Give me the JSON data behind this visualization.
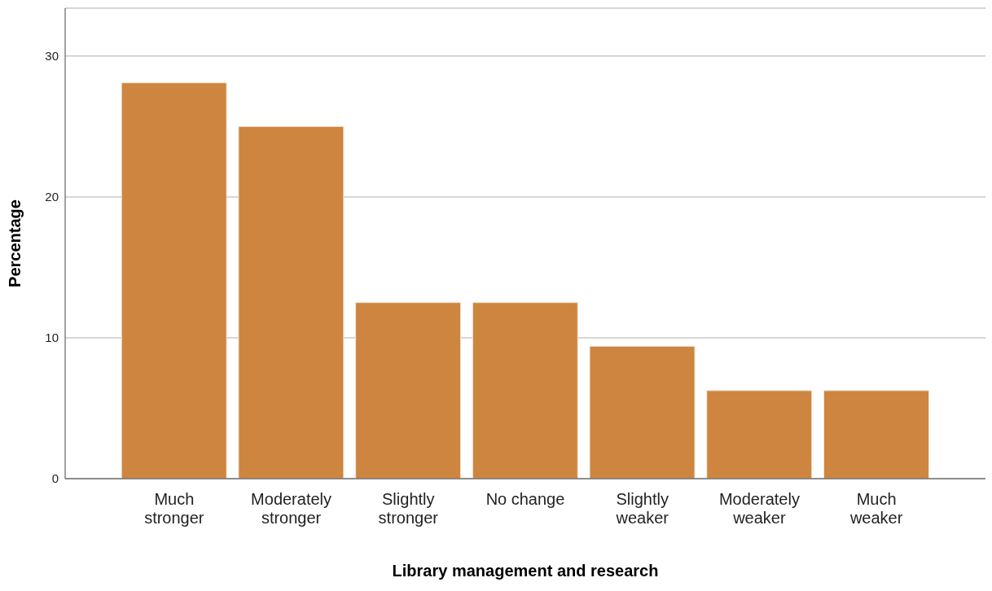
{
  "chart_data": {
    "type": "bar",
    "xlabel": "Library management and research",
    "ylabel": "Percentage",
    "categories": [
      "Much stronger",
      "Moderately stronger",
      "Slightly stronger",
      "No change",
      "Slightly weaker",
      "Moderately weaker",
      "Much weaker"
    ],
    "values": [
      28.1,
      25.0,
      12.5,
      12.5,
      9.4,
      6.25,
      6.25
    ],
    "color": "#cd853f",
    "ylim": [
      0,
      33.4
    ],
    "yticks": [
      0,
      10,
      20,
      30
    ],
    "grid": "y"
  }
}
